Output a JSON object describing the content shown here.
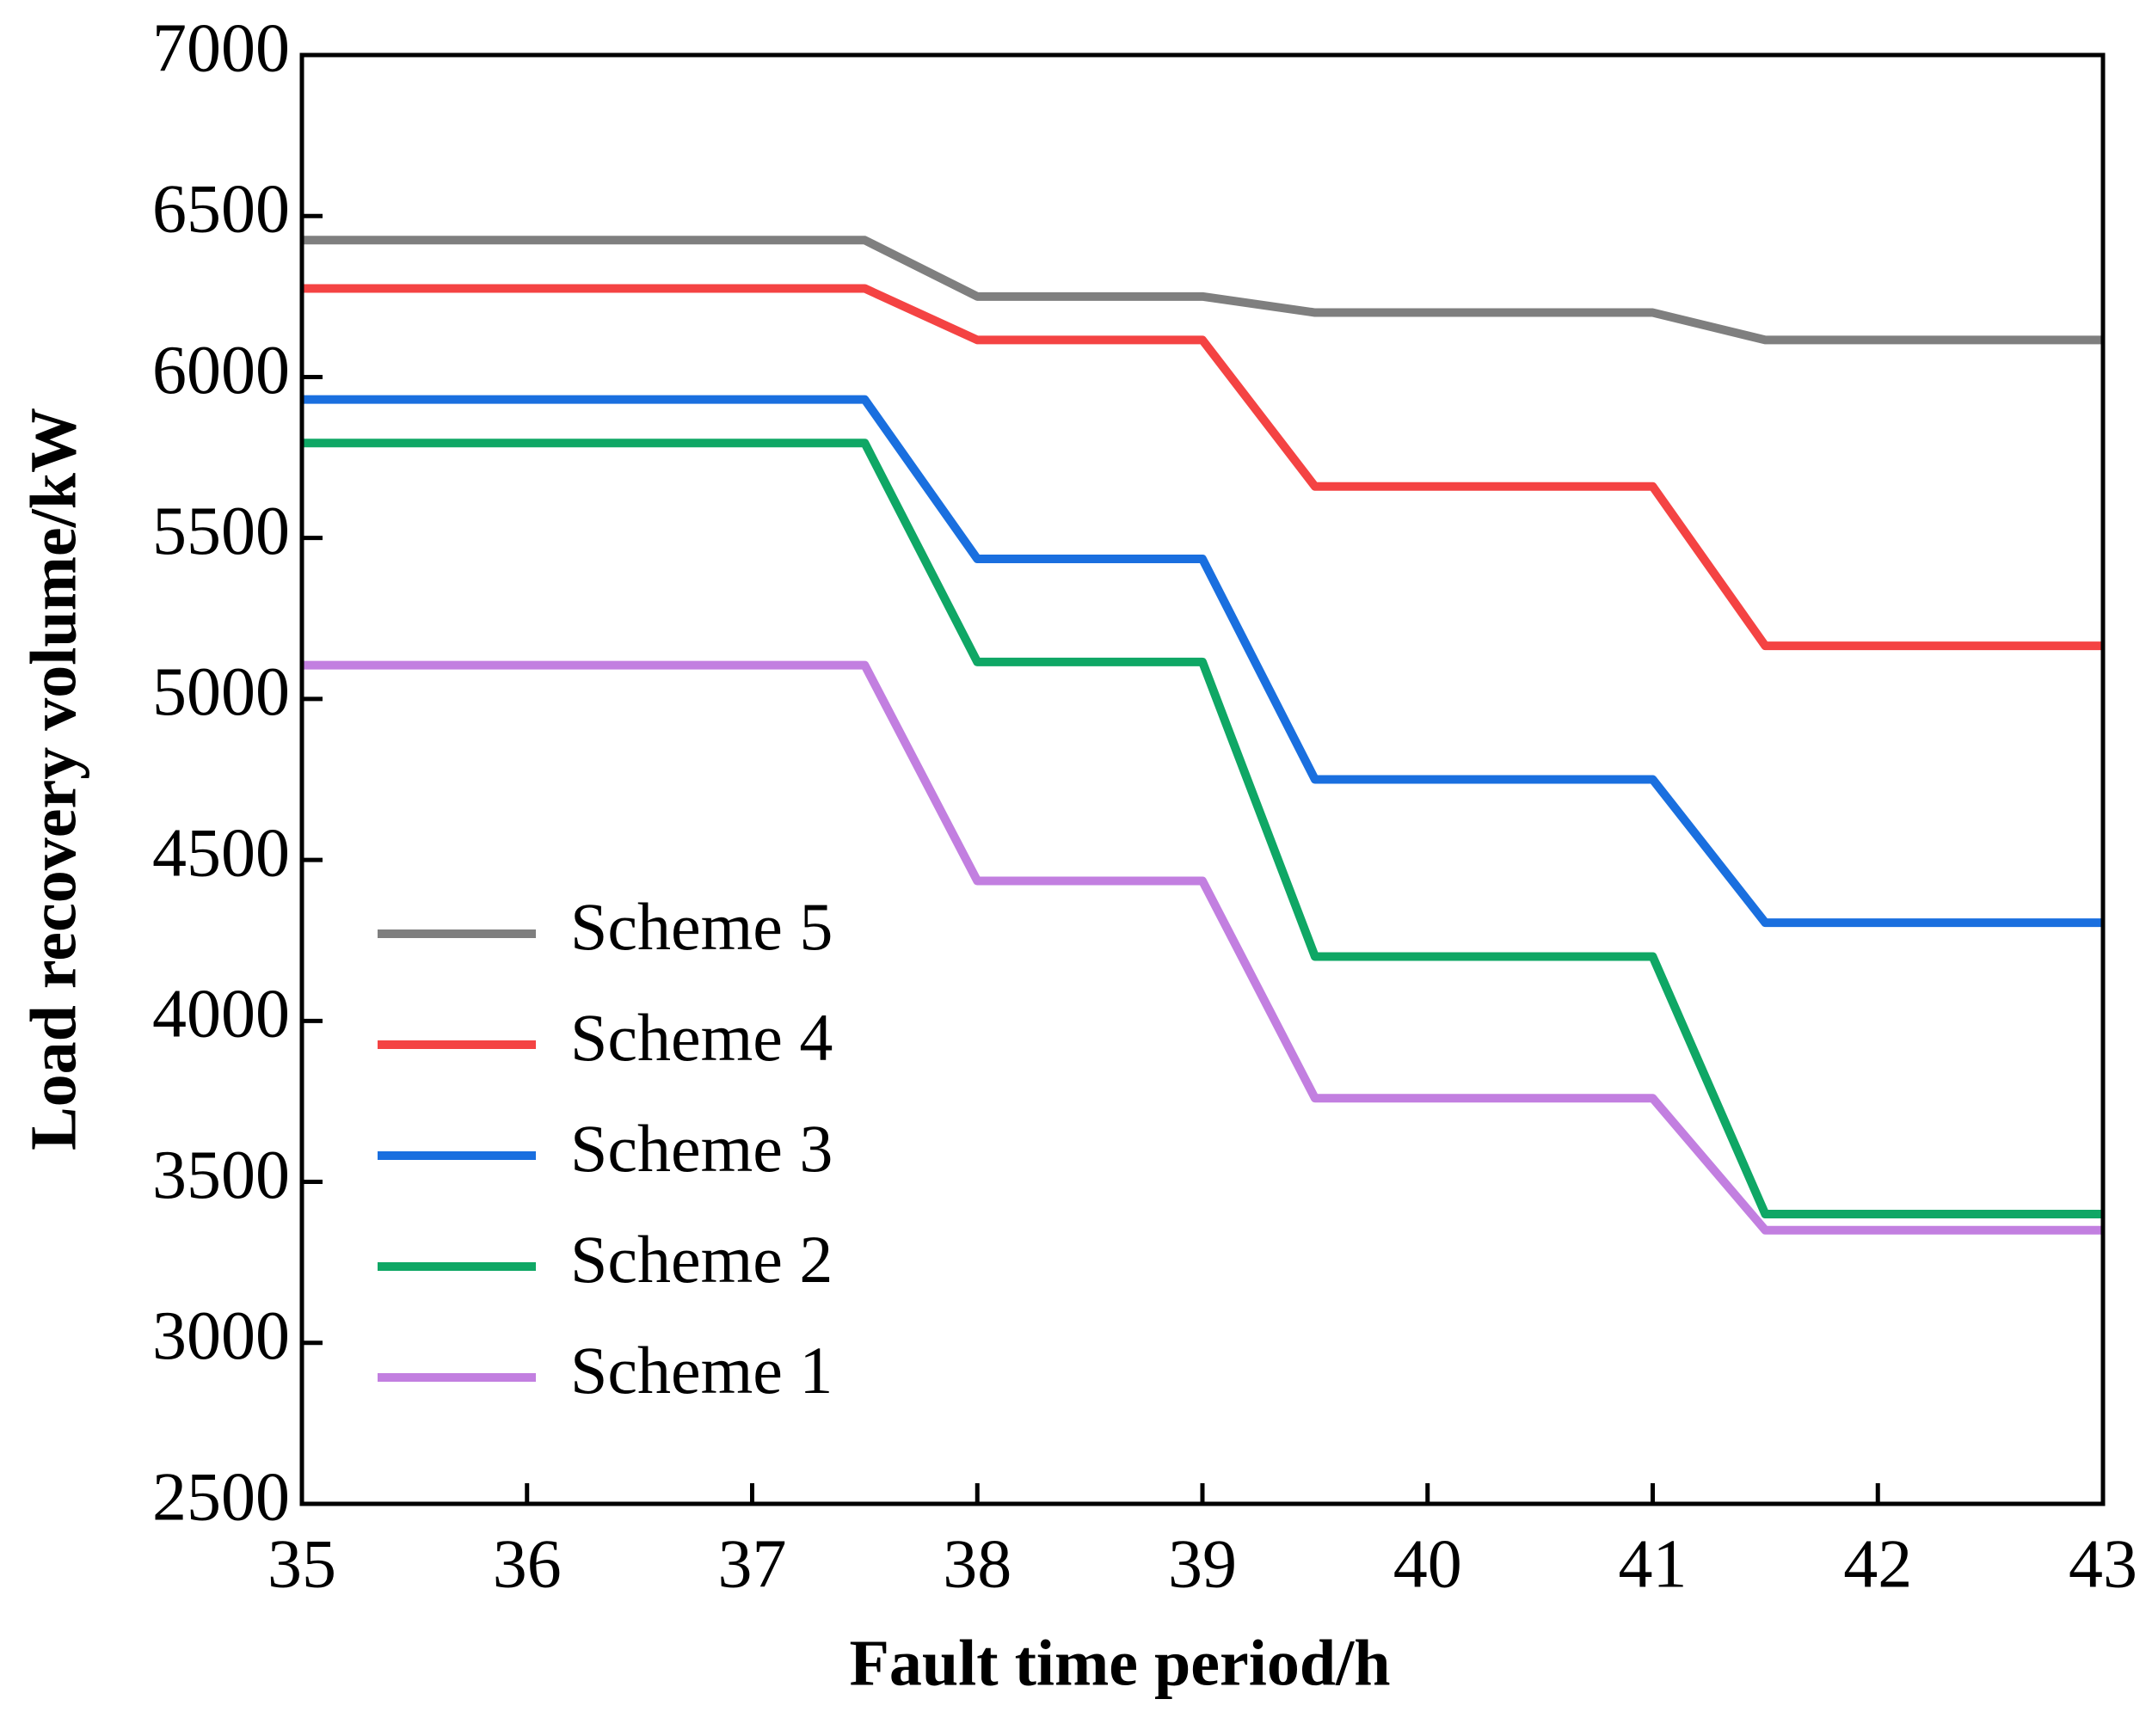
{
  "chart_data": {
    "type": "line",
    "x_label": "Fault time period/h",
    "y_label": "Load recovery volume/kW",
    "x": [
      35,
      37.5,
      38,
      39,
      39.5,
      41,
      41.5,
      43
    ],
    "series": [
      {
        "name": "Scheme 5",
        "color": "#7f7f7f",
        "values": [
          6425,
          6425,
          6250,
          6250,
          6200,
          6200,
          6115,
          6115
        ]
      },
      {
        "name": "Scheme 4",
        "color": "#f44343",
        "values": [
          6275,
          6275,
          6115,
          6115,
          5660,
          5660,
          5165,
          5165
        ]
      },
      {
        "name": "Scheme 3",
        "color": "#1a6fdf",
        "values": [
          5930,
          5930,
          5435,
          5435,
          4750,
          4750,
          4305,
          4305
        ]
      },
      {
        "name": "Scheme 2",
        "color": "#0fa765",
        "values": [
          5795,
          5795,
          5115,
          5115,
          4200,
          4200,
          3400,
          3400
        ]
      },
      {
        "name": "Scheme 1",
        "color": "#c27fe0",
        "values": [
          5105,
          5105,
          4435,
          4435,
          3760,
          3760,
          3350,
          3350
        ]
      }
    ],
    "xlim": [
      35,
      43
    ],
    "xticks": [
      35,
      36,
      37,
      38,
      39,
      40,
      41,
      42,
      43
    ],
    "ylim": [
      2500,
      7000
    ],
    "yticks": [
      2500,
      3000,
      3500,
      4000,
      4500,
      5000,
      5500,
      6000,
      6500,
      7000
    ],
    "grid": false,
    "legend": "lower left"
  }
}
